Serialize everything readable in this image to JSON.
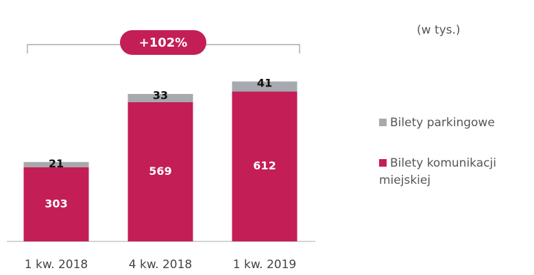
{
  "chart_data": {
    "type": "stacked_bar",
    "note": "(w tys.)",
    "annotation": "+102%",
    "categories": [
      "1 kw. 2018",
      "4 kw. 2018",
      "1 kw. 2019"
    ],
    "series": [
      {
        "name": "Bilety komunikacji miejskiej",
        "color": "#c41e56",
        "values": [
          303,
          569,
          612
        ]
      },
      {
        "name": "Bilety parkingowe",
        "color": "#a6a9ad",
        "values": [
          21,
          33,
          41
        ]
      }
    ],
    "ylim": [
      0,
      700
    ]
  }
}
